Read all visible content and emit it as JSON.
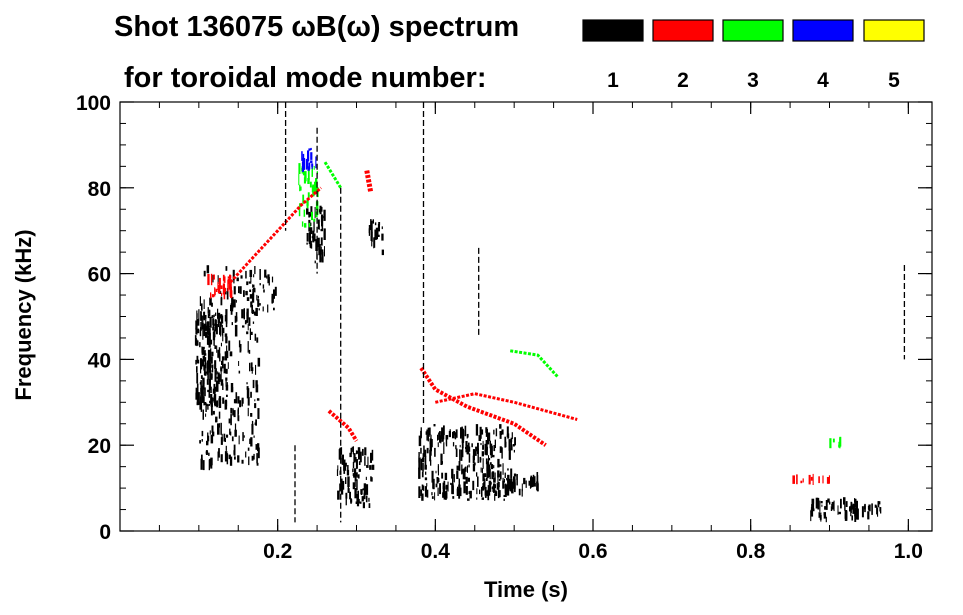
{
  "chart_data": {
    "type": "spectrogram",
    "title_line1": "Shot 136075 ωB(ω) spectrum",
    "title_line2": "for toroidal mode number:",
    "xlabel": "Time (s)",
    "ylabel": "Frequency (kHz)",
    "xlim": [
      0.0,
      1.03
    ],
    "ylim": [
      0,
      100
    ],
    "x_ticks": [
      0.2,
      0.4,
      0.6,
      0.8,
      1.0
    ],
    "x_tick_labels": [
      "0.2",
      "0.4",
      "0.6",
      "0.8",
      "1.0"
    ],
    "x_minor_step": 0.05,
    "y_ticks": [
      0,
      20,
      40,
      60,
      80,
      100
    ],
    "y_tick_labels": [
      "0",
      "20",
      "40",
      "60",
      "80",
      "100"
    ],
    "y_minor_step": 5,
    "legend": [
      {
        "label": "1",
        "color": "#000000"
      },
      {
        "label": "2",
        "color": "#ff0000"
      },
      {
        "label": "3",
        "color": "#00ff00"
      },
      {
        "label": "4",
        "color": "#0000ff"
      },
      {
        "label": "5",
        "color": "#ffff00"
      }
    ],
    "regions": [
      {
        "mode": "1",
        "t0": 0.095,
        "t1": 0.135,
        "f0": 28,
        "f1": 52,
        "density": 0.9
      },
      {
        "mode": "1",
        "t0": 0.1,
        "t1": 0.175,
        "f0": 14,
        "f1": 62,
        "density": 0.35
      },
      {
        "mode": "1",
        "t0": 0.16,
        "t1": 0.2,
        "f0": 50,
        "f1": 62,
        "density": 0.35
      },
      {
        "mode": "1",
        "t0": 0.235,
        "t1": 0.26,
        "f0": 62,
        "f1": 76,
        "density": 0.7
      },
      {
        "mode": "1",
        "t0": 0.315,
        "t1": 0.332,
        "f0": 64,
        "f1": 73,
        "density": 0.7
      },
      {
        "mode": "1",
        "t0": 0.275,
        "t1": 0.32,
        "f0": 5,
        "f1": 20,
        "density": 0.7
      },
      {
        "mode": "1",
        "t0": 0.378,
        "t1": 0.5,
        "f0": 7,
        "f1": 25,
        "density": 0.65
      },
      {
        "mode": "1",
        "t0": 0.455,
        "t1": 0.53,
        "f0": 8,
        "f1": 14,
        "density": 0.7
      },
      {
        "mode": "1",
        "t0": 0.875,
        "t1": 0.935,
        "f0": 2,
        "f1": 8,
        "density": 0.75
      },
      {
        "mode": "1",
        "t0": 0.94,
        "t1": 0.965,
        "f0": 2,
        "f1": 7,
        "density": 0.6
      },
      {
        "mode": "2",
        "t0": 0.11,
        "t1": 0.14,
        "f0": 54,
        "f1": 60,
        "density": 0.8
      },
      {
        "mode": "2",
        "t0": 0.852,
        "t1": 0.9,
        "f0": 11,
        "f1": 13,
        "density": 0.8
      },
      {
        "mode": "3",
        "t0": 0.225,
        "t1": 0.25,
        "f0": 70,
        "f1": 86,
        "density": 0.5
      },
      {
        "mode": "3",
        "t0": 0.895,
        "t1": 0.915,
        "f0": 19,
        "f1": 22,
        "density": 0.6
      },
      {
        "mode": "4",
        "t0": 0.228,
        "t1": 0.248,
        "f0": 83,
        "f1": 90,
        "density": 0.7
      }
    ],
    "curves": [
      {
        "mode": "2",
        "points": [
          [
            0.14,
            58
          ],
          [
            0.17,
            64
          ],
          [
            0.2,
            70
          ],
          [
            0.23,
            76
          ],
          [
            0.255,
            80
          ]
        ],
        "width": 3
      },
      {
        "mode": "2",
        "points": [
          [
            0.265,
            28
          ],
          [
            0.29,
            24
          ],
          [
            0.3,
            21
          ]
        ],
        "width": 4
      },
      {
        "mode": "2",
        "points": [
          [
            0.382,
            38
          ],
          [
            0.4,
            33
          ],
          [
            0.44,
            29
          ],
          [
            0.5,
            25
          ],
          [
            0.54,
            20
          ]
        ],
        "width": 4
      },
      {
        "mode": "2",
        "points": [
          [
            0.4,
            30
          ],
          [
            0.45,
            32
          ],
          [
            0.5,
            30
          ],
          [
            0.58,
            26
          ]
        ],
        "width": 3
      },
      {
        "mode": "2",
        "points": [
          [
            0.313,
            84
          ],
          [
            0.318,
            79
          ]
        ],
        "width": 5
      },
      {
        "mode": "3",
        "points": [
          [
            0.495,
            42
          ],
          [
            0.53,
            41
          ],
          [
            0.555,
            36
          ]
        ],
        "width": 3
      },
      {
        "mode": "3",
        "points": [
          [
            0.26,
            86
          ],
          [
            0.28,
            80
          ]
        ],
        "width": 3
      }
    ],
    "streaks": [
      {
        "t": 0.385,
        "f0": 25,
        "f1": 100,
        "mode": "1"
      },
      {
        "t": 0.25,
        "f0": 60,
        "f1": 94,
        "mode": "1"
      },
      {
        "t": 0.28,
        "f0": 2,
        "f1": 80,
        "mode": "1"
      },
      {
        "t": 0.222,
        "f0": 2,
        "f1": 20,
        "mode": "1"
      },
      {
        "t": 0.995,
        "f0": 40,
        "f1": 62,
        "mode": "1"
      },
      {
        "t": 0.455,
        "f0": 45,
        "f1": 66,
        "mode": "1"
      },
      {
        "t": 0.21,
        "f0": 70,
        "f1": 100,
        "mode": "1"
      }
    ]
  }
}
